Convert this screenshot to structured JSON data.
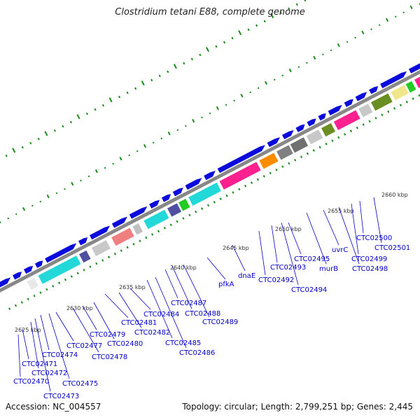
{
  "title": "Clostridium tetani E88, complete genome",
  "footer": {
    "accession": "Accession: NC_004557",
    "topology": "Topology: circular; Length: 2,799,251 bp; Genes: 2,445"
  },
  "colors": {
    "backbone": "#888888",
    "forward_arrow": "#0a0adc",
    "tick": "#1a8a1a",
    "label": "#0000cc",
    "label_line": "#0000cc",
    "scale_text": "#333333"
  },
  "scale_labels": [
    "2625 kbp",
    "2630 kbp",
    "2635 kbp",
    "2640 kbp",
    "2645 kbp",
    "2650 kbp",
    "2655 kbp",
    "2660 kbp"
  ],
  "gene_labels": [
    "CTC02470",
    "CTC02471",
    "CTC02472",
    "CTC02473",
    "CTC02474",
    "CTC02475",
    "CTC02477",
    "CTC02478",
    "CTC02479",
    "CTC02480",
    "CTC02481",
    "CTC02482",
    "CTC02484",
    "CTC02485",
    "CTC02486",
    "CTC02487",
    "CTC02488",
    "CTC02489",
    "pfkA",
    "dnaE",
    "CTC02492",
    "CTC02493",
    "CTC02494",
    "CTC02495",
    "murB",
    "uvrC",
    "CTC02498",
    "CTC02499",
    "CTC02500",
    "CTC02501"
  ],
  "feature_colors": [
    "#e8e8e8",
    "#22d8d8",
    "#5050a0",
    "#c8c8c8",
    "#f08080",
    "#c0c0c0",
    "#22d8d8",
    "#5050a0",
    "#22cc22",
    "#22d8d8",
    "#ff2090",
    "#ff8c00",
    "#808080",
    "#707070",
    "#c8c8c8",
    "#6b8e23",
    "#ff2090",
    "#c8c8c8",
    "#6b8e23",
    "#f0e68c",
    "#22cc22",
    "#ff2090"
  ]
}
